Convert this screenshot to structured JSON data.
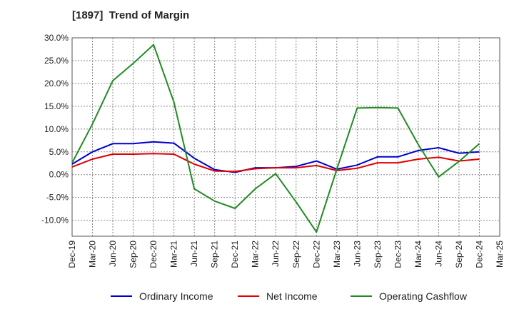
{
  "chart_data": {
    "type": "line",
    "title": "[1897]  Trend of Margin",
    "categories": [
      "Dec-19",
      "Mar-20",
      "Jun-20",
      "Sep-20",
      "Dec-20",
      "Mar-21",
      "Jun-21",
      "Sep-21",
      "Dec-21",
      "Mar-22",
      "Jun-22",
      "Sep-22",
      "Dec-22",
      "Mar-23",
      "Jun-23",
      "Sep-23",
      "Dec-23",
      "Mar-24",
      "Jun-24",
      "Sep-24",
      "Dec-24",
      "Mar-25"
    ],
    "ylim": [
      -13.5,
      30.0
    ],
    "yticks": [
      30.0,
      25.0,
      20.0,
      15.0,
      10.0,
      5.0,
      0.0,
      -5.0,
      -10.0
    ],
    "ytick_labels": [
      "30.0%",
      "25.0%",
      "20.0%",
      "15.0%",
      "10.0%",
      "5.0%",
      "0.0%",
      "-5.0%",
      "-10.0%"
    ],
    "grid": true,
    "legend_position": "bottom",
    "series": [
      {
        "name": "Ordinary Income",
        "color": "#0000cc",
        "values": [
          2.3,
          5.0,
          6.8,
          6.8,
          7.2,
          6.9,
          3.6,
          1.1,
          0.5,
          1.5,
          1.5,
          1.8,
          3.0,
          1.2,
          2.1,
          3.9,
          3.9,
          5.3,
          5.9,
          4.7,
          5.0,
          null
        ]
      },
      {
        "name": "Net Income",
        "color": "#e00000",
        "values": [
          1.7,
          3.4,
          4.5,
          4.5,
          4.6,
          4.5,
          2.3,
          0.8,
          0.7,
          1.3,
          1.5,
          1.5,
          2.0,
          0.9,
          1.4,
          2.6,
          2.6,
          3.4,
          3.8,
          3.0,
          3.4,
          null
        ]
      },
      {
        "name": "Operating Cashflow",
        "color": "#228b22",
        "values": [
          2.6,
          11.1,
          20.6,
          24.4,
          28.5,
          15.9,
          -3.1,
          -5.8,
          -7.4,
          -3.1,
          0.2,
          -6.0,
          -12.6,
          1.2,
          14.6,
          14.7,
          14.6,
          6.6,
          -0.5,
          2.9,
          6.8,
          null
        ]
      }
    ]
  }
}
